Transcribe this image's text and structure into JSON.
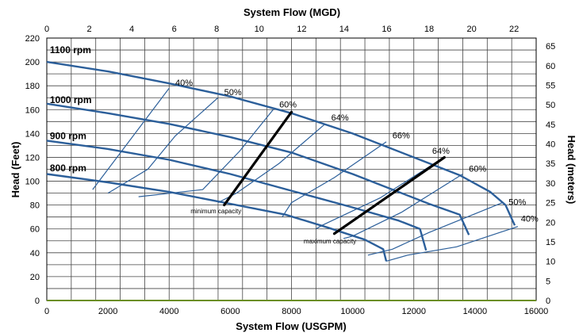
{
  "chart_data": {
    "type": "line",
    "title_top": "System Flow (MGD)",
    "xlabel": "System Flow (USGPM)",
    "ylabel_left": "Head (Feet)",
    "ylabel_right": "Head (meters)",
    "xlim": [
      0,
      16000
    ],
    "ylim": [
      0,
      220
    ],
    "x_ticks": [
      "0",
      "2000",
      "4000",
      "6000",
      "8000",
      "10000",
      "12000",
      "14000",
      "16000"
    ],
    "y_ticks": [
      "0",
      "20",
      "40",
      "60",
      "80",
      "100",
      "120",
      "140",
      "160",
      "180",
      "200",
      "220"
    ],
    "top_ticks": [
      "0",
      "2",
      "4",
      "6",
      "8",
      "10",
      "12",
      "14",
      "16",
      "18",
      "20",
      "22"
    ],
    "right_ticks": [
      "0",
      "5",
      "10",
      "15",
      "20",
      "25",
      "30",
      "35",
      "40",
      "45",
      "50",
      "55",
      "60",
      "65"
    ],
    "grid": true,
    "pump_curves": [
      {
        "name": "1100 rpm",
        "points": [
          [
            0,
            200
          ],
          [
            2000,
            192
          ],
          [
            4000,
            182
          ],
          [
            6000,
            171
          ],
          [
            8000,
            157
          ],
          [
            10000,
            140
          ],
          [
            12000,
            120
          ],
          [
            13500,
            105
          ],
          [
            14500,
            91
          ],
          [
            15000,
            80
          ],
          [
            15300,
            63
          ]
        ]
      },
      {
        "name": "1000 rpm",
        "points": [
          [
            0,
            165
          ],
          [
            2000,
            157
          ],
          [
            4000,
            148
          ],
          [
            6000,
            137
          ],
          [
            8000,
            124
          ],
          [
            10000,
            106
          ],
          [
            11500,
            91
          ],
          [
            12500,
            81
          ],
          [
            13500,
            72
          ],
          [
            13800,
            55
          ]
        ]
      },
      {
        "name": "900 rpm",
        "points": [
          [
            0,
            134
          ],
          [
            2000,
            127
          ],
          [
            4000,
            118
          ],
          [
            6000,
            106
          ],
          [
            8000,
            92
          ],
          [
            10000,
            78
          ],
          [
            11500,
            67
          ],
          [
            12200,
            60
          ],
          [
            12400,
            42
          ]
        ]
      },
      {
        "name": "800 rpm",
        "points": [
          [
            0,
            106
          ],
          [
            2000,
            99
          ],
          [
            4000,
            91
          ],
          [
            5800,
            82
          ],
          [
            7800,
            72
          ],
          [
            9200,
            61
          ],
          [
            10400,
            51
          ],
          [
            11000,
            43
          ],
          [
            11100,
            33
          ]
        ]
      }
    ],
    "efficiency_curves": [
      {
        "label": "40%",
        "points": [
          [
            4000,
            178
          ],
          [
            1500,
            93
          ]
        ],
        "label_at": [
          4200,
          180
        ]
      },
      {
        "label": "50%",
        "points": [
          [
            5600,
            170
          ],
          [
            4200,
            138
          ],
          [
            3300,
            110
          ],
          [
            2000,
            90
          ]
        ],
        "label_at": [
          5800,
          172
        ]
      },
      {
        "label": "60%",
        "points": [
          [
            7400,
            160
          ],
          [
            6300,
            125
          ],
          [
            5100,
            93
          ],
          [
            3000,
            87
          ]
        ],
        "label_at": [
          7600,
          162
        ]
      },
      {
        "label": "64%",
        "points": [
          [
            9100,
            148
          ],
          [
            7600,
            115
          ],
          [
            6200,
            90
          ],
          [
            5600,
            82
          ]
        ],
        "label_at": [
          9300,
          151
        ]
      },
      {
        "label": "66%",
        "points": [
          [
            11100,
            133
          ],
          [
            9400,
            103
          ],
          [
            8000,
            82
          ],
          [
            7700,
            70
          ]
        ],
        "label_at": [
          11300,
          136
        ]
      },
      {
        "label": "64%",
        "points": [
          [
            12800,
            117
          ],
          [
            10900,
            86
          ],
          [
            9000,
            63
          ],
          [
            8800,
            60
          ]
        ],
        "label_at": [
          12600,
          123
        ]
      },
      {
        "label": "60%",
        "points": [
          [
            13600,
            106
          ],
          [
            11600,
            74
          ],
          [
            10000,
            54
          ],
          [
            9700,
            52
          ]
        ],
        "label_at": [
          13800,
          108
        ]
      },
      {
        "label": "50%",
        "points": [
          [
            14900,
            82
          ],
          [
            12500,
            57
          ],
          [
            11300,
            43
          ],
          [
            10500,
            38
          ]
        ],
        "label_at": [
          15100,
          80
        ]
      },
      {
        "label": "40%",
        "points": [
          [
            15400,
            62
          ],
          [
            13400,
            45
          ],
          [
            11800,
            38
          ],
          [
            11100,
            33
          ]
        ],
        "label_at": [
          15500,
          66
        ]
      }
    ],
    "operating_lines": [
      {
        "label": "minimum capacity",
        "points": [
          [
            5800,
            80
          ],
          [
            8000,
            158
          ]
        ],
        "label_at": [
          4700,
          73
        ]
      },
      {
        "label": "maximum capacity",
        "points": [
          [
            9400,
            56
          ],
          [
            13000,
            120
          ]
        ],
        "label_at": [
          8400,
          48
        ]
      }
    ],
    "rpm_labels_at": [
      [
        100,
        210
      ],
      [
        100,
        168
      ],
      [
        100,
        138
      ],
      [
        100,
        111
      ]
    ],
    "colors": {
      "curve": "#2c5f9a",
      "operating_line": "#000000",
      "grid": "#444444",
      "baseline": "#6b8e23"
    }
  }
}
